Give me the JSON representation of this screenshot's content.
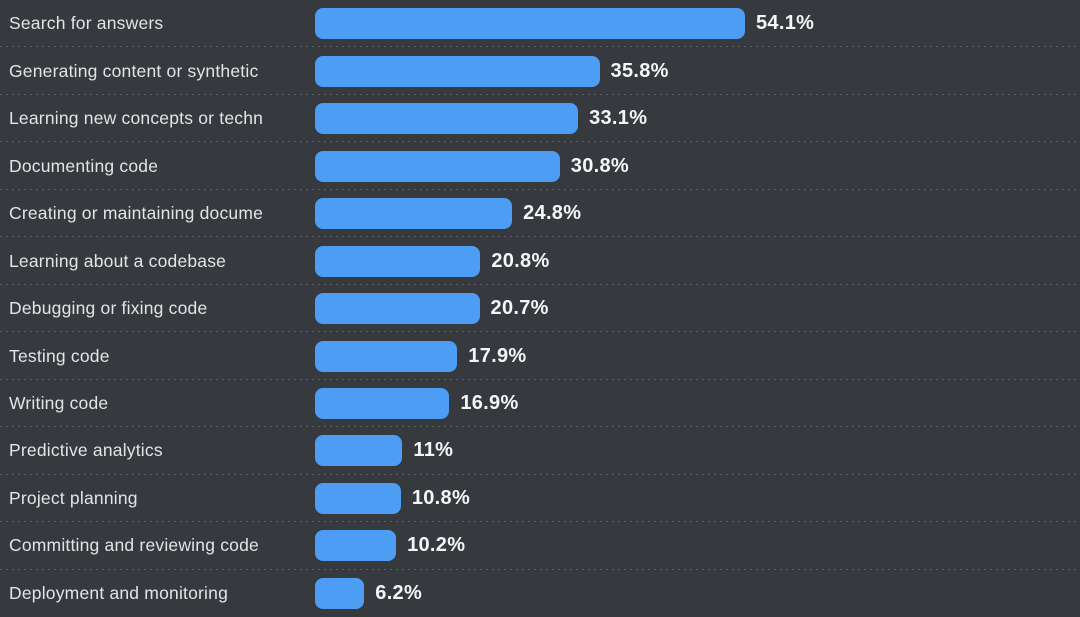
{
  "chart_data": {
    "type": "bar",
    "orientation": "horizontal",
    "title": "",
    "xlabel": "",
    "ylabel": "",
    "legend": false,
    "grid": "dashed-horizontal-row-separators",
    "value_axis_range": [
      0,
      60
    ],
    "categories": [
      "Search for answers",
      "Generating content or synthetic",
      "Learning new concepts or techn",
      "Documenting code",
      "Creating or maintaining docume",
      "Learning about a codebase",
      "Debugging or fixing code",
      "Testing code",
      "Writing code",
      "Predictive analytics",
      "Project planning",
      "Committing and reviewing code",
      "Deployment and monitoring"
    ],
    "values": [
      54.1,
      35.8,
      33.1,
      30.8,
      24.8,
      20.8,
      20.7,
      17.9,
      16.9,
      11,
      10.8,
      10.2,
      6.2
    ],
    "value_labels": [
      "54.1%",
      "35.8%",
      "33.1%",
      "30.8%",
      "24.8%",
      "20.8%",
      "20.7%",
      "17.9%",
      "16.9%",
      "11%",
      "10.8%",
      "10.2%",
      "6.2%"
    ],
    "label_truncation": "fade-out",
    "colors": {
      "background": "#36393D",
      "bar": "#4D9DF4",
      "label_text": "#E2E4E6",
      "value_text": "#F5F6F7",
      "gridline": "#5B5F63"
    }
  }
}
